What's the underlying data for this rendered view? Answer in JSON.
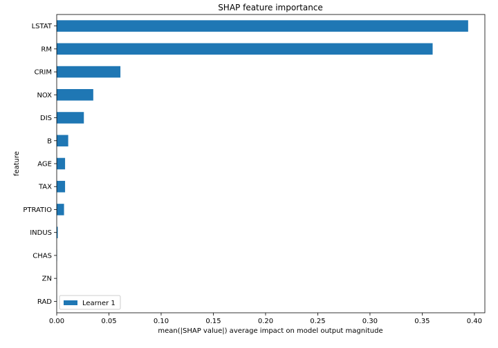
{
  "chart_data": {
    "type": "bar",
    "orientation": "horizontal",
    "title": "SHAP feature importance",
    "xlabel": "mean(|SHAP value|) average impact on model output magnitude",
    "ylabel": "feature",
    "xlim": [
      0,
      0.41
    ],
    "xticks": [
      "0.00",
      "0.05",
      "0.10",
      "0.15",
      "0.20",
      "0.25",
      "0.30",
      "0.35",
      "0.40"
    ],
    "categories": [
      "LSTAT",
      "RM",
      "CRIM",
      "NOX",
      "DIS",
      "B",
      "AGE",
      "TAX",
      "PTRATIO",
      "INDUS",
      "CHAS",
      "ZN",
      "RAD"
    ],
    "series": [
      {
        "name": "Learner 1",
        "color": "#1f77b4",
        "values": [
          0.394,
          0.36,
          0.061,
          0.035,
          0.026,
          0.011,
          0.008,
          0.008,
          0.007,
          0.001,
          0.0003,
          0.0002,
          0.0001
        ]
      }
    ],
    "legend_position": "lower-left",
    "grid": false
  }
}
